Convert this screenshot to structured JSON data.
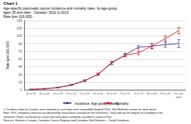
{
  "chart_data": {
    "type": "line",
    "title": "Chart 1",
    "subtitle": [
      "Age-specific pancreatic cancer incidence and mortality rates, by age group,",
      "ages 35 and older,  Canada,¹ 2011 to 2013"
    ],
    "xlabel": "Age group (years)",
    "ylabel": "Rate (per 100,000)",
    "categories": [
      "35 to 39",
      "40 to 44",
      "45 to 49",
      "50 to 54",
      "55 to 59",
      "60 to 64",
      "65 to 69",
      "70 to 74",
      "75 to 79",
      "80 to 84",
      "85 to 89",
      "90 and\nolder"
    ],
    "series": [
      {
        "name": "Incidence",
        "color": "#3a3a99",
        "values": [
          0.8,
          2.0,
          4.5,
          9.5,
          18.0,
          30.0,
          52.0,
          68.0,
          83.0,
          85.0,
          88.0,
          90.0
        ],
        "lower": [
          0.5,
          1.5,
          3.8,
          8.5,
          16.5,
          28.0,
          49.0,
          65.0,
          80.0,
          80.0,
          83.0,
          82.0
        ],
        "upper": [
          1.1,
          2.5,
          5.2,
          10.5,
          19.5,
          32.0,
          55.0,
          71.0,
          86.0,
          90.0,
          93.0,
          98.0
        ]
      },
      {
        "name": "Mortality",
        "color": "#cc2222",
        "values": [
          0.7,
          1.8,
          4.0,
          9.0,
          17.5,
          30.5,
          53.0,
          67.0,
          72.0,
          85.0,
          100.0,
          115.0
        ],
        "lower": [
          0.4,
          1.3,
          3.3,
          8.0,
          16.0,
          28.5,
          50.5,
          64.0,
          68.0,
          80.0,
          95.0,
          109.0
        ],
        "upper": [
          1.0,
          2.3,
          4.7,
          10.0,
          19.0,
          32.5,
          55.5,
          70.0,
          76.0,
          90.0,
          105.0,
          121.0
        ]
      }
    ],
    "ylim": [
      0,
      135
    ],
    "yticks": [
      0,
      15,
      30,
      45,
      60,
      75,
      90,
      105,
      120,
      135
    ],
    "grid": true,
    "legend": "bottom",
    "annotations": [
      "1. Incidence data for Quebec were imputed as such data were unavailable beyond 2010. See Methods section for more detail.",
      "Note: 95% confidence intervals are denoted by vertical bars overlaid on the trend lines. They indicate the degree of variability in the",
      "estimates. Rates are based on counts that have been randomly rounded to a base of five.",
      "Sources: Statistics Canada, Canadian Cancer Registry and Canadian Vital Statistics – Death Database."
    ]
  }
}
